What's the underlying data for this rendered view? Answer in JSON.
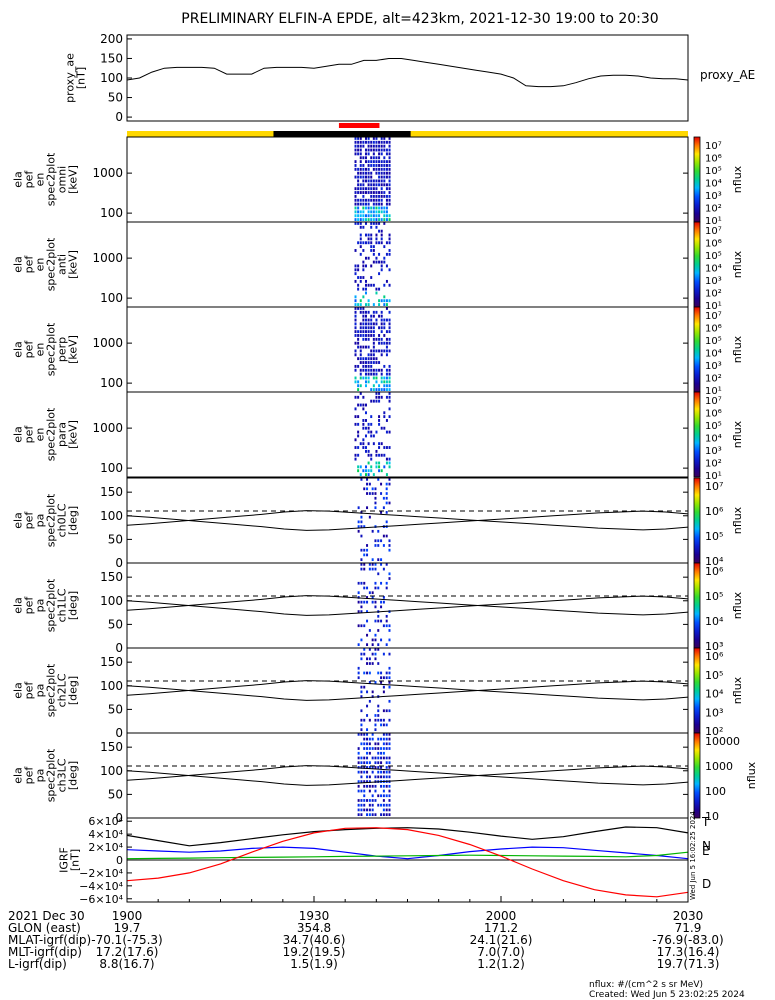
{
  "title": "PRELIMINARY ELFIN-A EPDE, alt=423km, 2021-12-30 19:00 to 20:30",
  "colors": {
    "sunlight_bar": "#ffd800",
    "eclipse_bar": "#000000",
    "science_zone": "#ff0000",
    "igrf_total": "#000000",
    "igrf_north": "#0000ff",
    "igrf_east": "#00b400",
    "igrf_down": "#ff0000"
  },
  "chart_data": [
    {
      "type": "line",
      "panel": "proxy_ae",
      "ylabel_lines": [
        "proxy_ae",
        "[nT]"
      ],
      "right_label": "proxy_AE",
      "yticks": [
        "200",
        "150",
        "100",
        "50",
        "0"
      ],
      "ylim": [
        -10,
        210
      ],
      "x_minutes": [
        0,
        2,
        4,
        6,
        8,
        10,
        12,
        14,
        16,
        18,
        20,
        22,
        24,
        26,
        28,
        30,
        32,
        34,
        36,
        38,
        40,
        42,
        44,
        46,
        48,
        50,
        52,
        54,
        56,
        58,
        60,
        62,
        64,
        66,
        68,
        70,
        72,
        74,
        76,
        78,
        80,
        82,
        84,
        86,
        88,
        90
      ],
      "y": [
        95,
        100,
        115,
        125,
        127,
        127,
        127,
        125,
        110,
        110,
        110,
        125,
        127,
        127,
        127,
        125,
        130,
        135,
        135,
        145,
        145,
        150,
        150,
        145,
        140,
        135,
        130,
        125,
        120,
        115,
        110,
        100,
        80,
        78,
        78,
        80,
        88,
        98,
        105,
        107,
        107,
        105,
        100,
        98,
        98,
        95
      ]
    },
    {
      "type": "heatmap",
      "panel": "ela_pef_en_spec2plot_omni",
      "ylabel_lines": [
        "ela",
        "pef",
        "en",
        "spec2plot",
        "omni",
        "[keV]"
      ],
      "yticks": [
        "1000",
        "100"
      ],
      "y_scale": "log",
      "colorbar": {
        "label": "nflux",
        "ticks": [
          "10⁷",
          "10⁶",
          "10⁵",
          "10⁴",
          "10³",
          "10²",
          "10¹"
        ]
      },
      "active_interval_minutes": [
        40,
        45
      ]
    },
    {
      "type": "heatmap",
      "panel": "ela_pef_en_spec2plot_anti",
      "ylabel_lines": [
        "ela",
        "pef",
        "en",
        "spec2plot",
        "anti",
        "[keV]"
      ],
      "yticks": [
        "1000",
        "100"
      ],
      "y_scale": "log",
      "colorbar": {
        "label": "nflux",
        "ticks": [
          "10⁷",
          "10⁶",
          "10⁵",
          "10⁴",
          "10³",
          "10²",
          "10¹"
        ]
      },
      "active_interval_minutes": [
        40,
        45
      ]
    },
    {
      "type": "heatmap",
      "panel": "ela_pef_en_spec2plot_perp",
      "ylabel_lines": [
        "ela",
        "pef",
        "en",
        "spec2plot",
        "perp",
        "[keV]"
      ],
      "yticks": [
        "1000",
        "100"
      ],
      "y_scale": "log",
      "colorbar": {
        "label": "nflux",
        "ticks": [
          "10⁷",
          "10⁶",
          "10⁵",
          "10⁴",
          "10³",
          "10²",
          "10¹"
        ]
      },
      "active_interval_minutes": [
        40,
        45
      ]
    },
    {
      "type": "heatmap",
      "panel": "ela_pef_en_spec2plot_para",
      "ylabel_lines": [
        "ela",
        "pef",
        "en",
        "spec2plot",
        "para",
        "[keV]"
      ],
      "yticks": [
        "1000",
        "100"
      ],
      "y_scale": "log",
      "colorbar": {
        "label": "nflux",
        "ticks": [
          "10⁷",
          "10⁶",
          "10⁵",
          "10⁴",
          "10³",
          "10²",
          "10¹"
        ]
      },
      "active_interval_minutes": [
        40,
        45
      ]
    },
    {
      "type": "heatmap",
      "panel": "ela_pef_pa_spec2plot_ch0LC",
      "ylabel_lines": [
        "ela",
        "pef",
        "pa",
        "spec2plot",
        "ch0LC",
        "[deg]"
      ],
      "yticks": [
        "150",
        "100",
        "50",
        "0"
      ],
      "ylim": [
        0,
        180
      ],
      "colorbar": {
        "label": "nflux",
        "ticks": [
          "10⁷",
          "10⁶",
          "10⁵",
          "10⁴"
        ]
      },
      "lc_line_deg": [
        100,
        97,
        93,
        89,
        85,
        81,
        77,
        72,
        69,
        70,
        73,
        76,
        79,
        82,
        85,
        88,
        91,
        94,
        97,
        100,
        103,
        106,
        108,
        110,
        108,
        104
      ],
      "blc_dashed_deg": 110
    },
    {
      "type": "heatmap",
      "panel": "ela_pef_pa_spec2plot_ch1LC",
      "ylabel_lines": [
        "ela",
        "pef",
        "pa",
        "spec2plot",
        "ch1LC",
        "[deg]"
      ],
      "yticks": [
        "150",
        "100",
        "50",
        "0"
      ],
      "ylim": [
        0,
        180
      ],
      "colorbar": {
        "label": "nflux",
        "ticks": [
          "10⁶",
          "10⁵",
          "10⁴",
          "10³"
        ]
      },
      "lc_line_deg": [
        100,
        97,
        93,
        89,
        85,
        81,
        77,
        72,
        69,
        70,
        73,
        76,
        79,
        82,
        85,
        88,
        91,
        94,
        97,
        100,
        103,
        106,
        108,
        110,
        108,
        104
      ],
      "blc_dashed_deg": 110
    },
    {
      "type": "heatmap",
      "panel": "ela_pef_pa_spec2plot_ch2LC",
      "ylabel_lines": [
        "ela",
        "pef",
        "pa",
        "spec2plot",
        "ch2LC",
        "[deg]"
      ],
      "yticks": [
        "150",
        "100",
        "50",
        "0"
      ],
      "ylim": [
        0,
        180
      ],
      "colorbar": {
        "label": "nflux",
        "ticks": [
          "10⁶",
          "10⁵",
          "10⁴",
          "10³",
          "10²"
        ]
      },
      "lc_line_deg": [
        100,
        97,
        93,
        89,
        85,
        81,
        77,
        72,
        69,
        70,
        73,
        76,
        79,
        82,
        85,
        88,
        91,
        94,
        97,
        100,
        103,
        106,
        108,
        110,
        108,
        104
      ],
      "blc_dashed_deg": 110
    },
    {
      "type": "heatmap",
      "panel": "ela_pef_pa_spec2plot_ch3LC",
      "ylabel_lines": [
        "ela",
        "pef",
        "pa",
        "spec2plot",
        "ch3LC",
        "[deg]"
      ],
      "yticks": [
        "150",
        "100",
        "50",
        "0"
      ],
      "ylim": [
        0,
        180
      ],
      "colorbar": {
        "label": "nflux",
        "ticks": [
          "10000",
          "1000",
          "100",
          "10"
        ]
      },
      "lc_line_deg": [
        100,
        97,
        93,
        89,
        85,
        81,
        77,
        72,
        69,
        70,
        73,
        76,
        79,
        82,
        85,
        88,
        91,
        94,
        97,
        100,
        103,
        106,
        108,
        110,
        108,
        104
      ],
      "blc_dashed_deg": 110
    },
    {
      "type": "line",
      "panel": "IGRF",
      "ylabel_lines": [
        "IGRF",
        "[nT]"
      ],
      "yticks": [
        "6×10⁴",
        "4×10⁴",
        "2×10⁴",
        "0",
        "−2×10⁴",
        "−4×10⁴",
        "−6×10⁴"
      ],
      "ylim": [
        -65000,
        65000
      ],
      "x_minutes": [
        0,
        5,
        10,
        15,
        20,
        25,
        30,
        35,
        40,
        45,
        50,
        55,
        60,
        65,
        70,
        75,
        80,
        85,
        90
      ],
      "series": [
        {
          "name": "T",
          "values": [
            38000,
            30000,
            22000,
            27000,
            33000,
            39000,
            44000,
            47000,
            49000,
            50000,
            48000,
            43000,
            37000,
            32000,
            36000,
            44000,
            51000,
            50000,
            42000
          ]
        },
        {
          "name": "N",
          "values": [
            16000,
            14000,
            12000,
            14000,
            18000,
            20000,
            18000,
            12000,
            6000,
            2000,
            7000,
            13000,
            17000,
            20000,
            19000,
            15000,
            11000,
            7000,
            2000
          ]
        },
        {
          "name": "E",
          "values": [
            2000,
            2500,
            3000,
            3500,
            4000,
            4500,
            5000,
            5500,
            6000,
            6500,
            7000,
            7500,
            7000,
            6500,
            6000,
            5500,
            5000,
            7000,
            12000
          ]
        },
        {
          "name": "D",
          "values": [
            -32000,
            -28000,
            -20000,
            -6000,
            12000,
            29000,
            42000,
            49000,
            50000,
            47000,
            38000,
            24000,
            6000,
            -14000,
            -32000,
            -46000,
            -54000,
            -57000,
            -50000
          ]
        }
      ],
      "legend_labels": [
        "T",
        "N",
        "E",
        "D"
      ]
    }
  ],
  "time_axis": {
    "date_label": "2021 Dec 30",
    "ticks": [
      "1900",
      "1930",
      "2000",
      "2030"
    ],
    "rows": [
      {
        "label": "GLON (east)",
        "values": [
          "19.7",
          "354.8",
          "171.2",
          "71.9"
        ]
      },
      {
        "label": "MLAT-igrf(dip)",
        "values": [
          "-70.1(-75.3)",
          "34.7(40.6)",
          "24.1(21.6)",
          "-76.9(-83.0)"
        ]
      },
      {
        "label": "MLT-igrf(dip)",
        "values": [
          "17.2(17.6)",
          "19.2(19.5)",
          "7.0(7.0)",
          "17.3(16.4)"
        ]
      },
      {
        "label": "L-igrf(dip)",
        "values": [
          "8.8(16.7)",
          "1.5(1.9)",
          "1.2(1.2)",
          "19.7(71.3)"
        ]
      }
    ]
  },
  "footer": {
    "units": "nflux: #/(cm^2 s sr MeV)",
    "created": "Created: Wed Jun  5 23:02:25 2024",
    "vertical_stamp": "Wed Jun  5 16:02:25 2024"
  }
}
